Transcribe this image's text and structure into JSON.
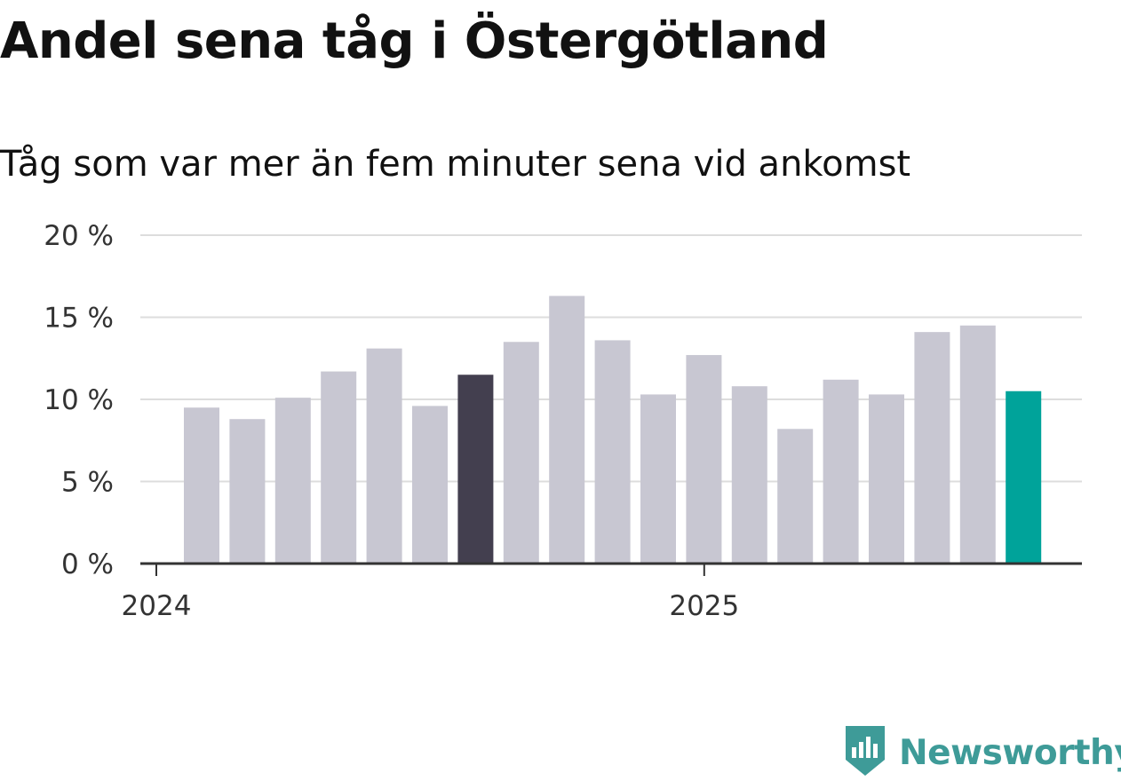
{
  "title": "Andel sena tåg i Östergötland",
  "subtitle": "Tåg som var mer än fem minuter sena vid ankomst",
  "brand": {
    "name": "Newsworthy",
    "color": "#3e9b98"
  },
  "colors": {
    "default_bar": "#c8c7d2",
    "highlight_bar": "#433f4f",
    "latest_bar": "#00a39a",
    "grid": "#dddddd",
    "axis": "#333333"
  },
  "chart_data": {
    "type": "bar",
    "categories": [
      "2024-01",
      "2024-02",
      "2024-03",
      "2024-04",
      "2024-05",
      "2024-06",
      "2024-07",
      "2024-08",
      "2024-09",
      "2024-10",
      "2024-11",
      "2024-12",
      "2025-01",
      "2025-02",
      "2025-03",
      "2025-04",
      "2025-05",
      "2025-06",
      "2025-07"
    ],
    "values": [
      9.5,
      8.8,
      10.1,
      11.7,
      13.1,
      9.6,
      11.5,
      13.5,
      16.3,
      13.6,
      10.3,
      12.7,
      10.8,
      8.2,
      11.2,
      10.3,
      14.1,
      14.5,
      10.5
    ],
    "highlight": {
      "2024-07": "highlight",
      "2025-07": "latest"
    },
    "ylim": [
      0,
      20
    ],
    "yticks": [
      0,
      5,
      10,
      15,
      20
    ],
    "ytick_labels": [
      "0 %",
      "5 %",
      "10 %",
      "15 %",
      "20 %"
    ],
    "xticks": [
      {
        "at": "2024-01",
        "label": "2024"
      },
      {
        "at": "2025-01",
        "label": "2025"
      }
    ],
    "grid": true,
    "xlabel": "",
    "ylabel": ""
  }
}
